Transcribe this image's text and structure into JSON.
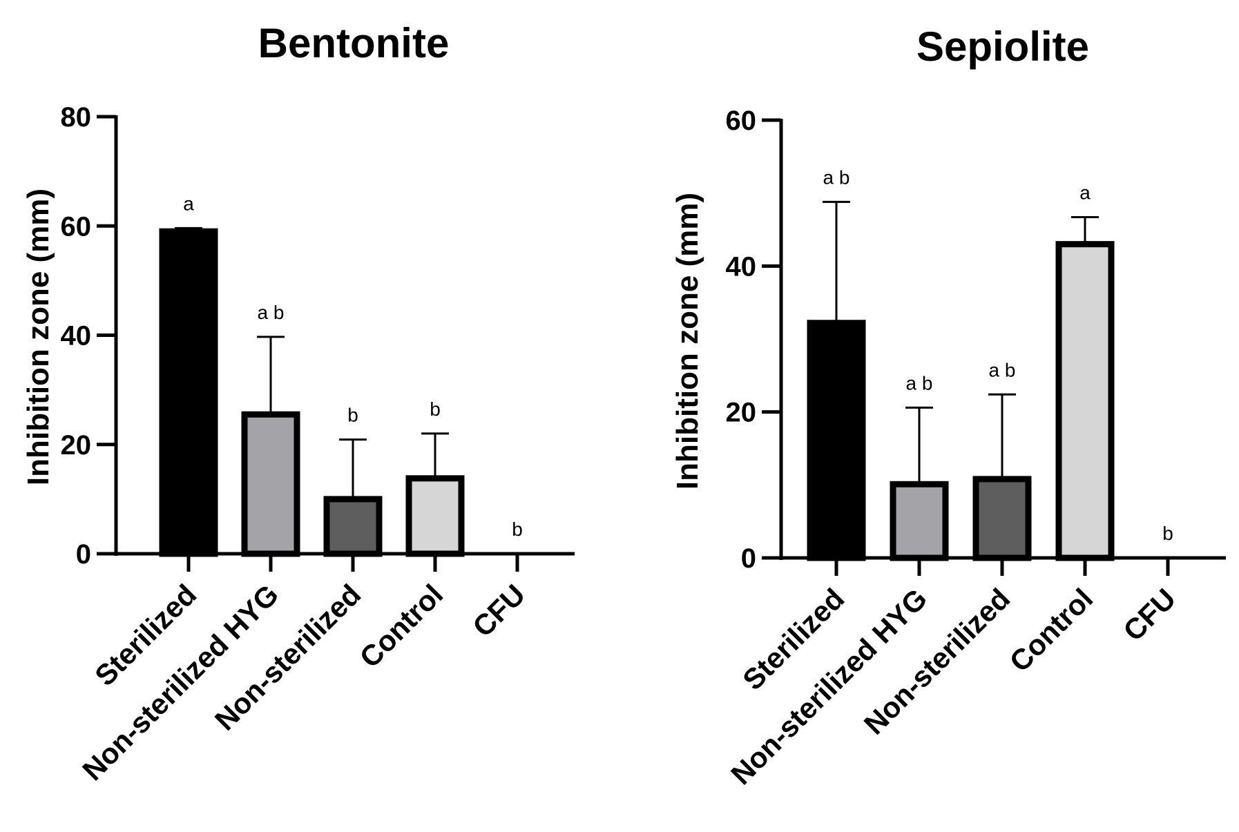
{
  "chart_data": [
    {
      "type": "bar",
      "title": "Bentonite",
      "xlabel": "",
      "ylabel": "Inhibition zone (mm)",
      "ylim": [
        0,
        80
      ],
      "yticks": [
        0,
        20,
        40,
        60,
        80
      ],
      "categories": [
        "Sterilized",
        "Non-sterilized HYG",
        "Non-sterilized",
        "Control",
        "CFU"
      ],
      "values": [
        59,
        25.5,
        10,
        13.8,
        0
      ],
      "errors": [
        0.6,
        14.2,
        10.9,
        8.2,
        0
      ],
      "significance": [
        "a",
        "a b",
        "b",
        "b",
        "b"
      ],
      "colors": [
        "#000000",
        "#a3a3a8",
        "#5e5e5e",
        "#d6d6d6",
        "#ffffff"
      ],
      "grid": false
    },
    {
      "type": "bar",
      "title": "Sepiolite",
      "xlabel": "",
      "ylabel": "Inhibition zone (mm)",
      "ylim": [
        0,
        60
      ],
      "yticks": [
        0,
        20,
        40,
        60
      ],
      "categories": [
        "Sterilized",
        "Non-sterilized HYG",
        "Non-sterilized",
        "Control",
        "CFU"
      ],
      "values": [
        32.2,
        10.1,
        10.8,
        43,
        0
      ],
      "errors": [
        16.6,
        10.5,
        11.6,
        3.7,
        0
      ],
      "significance": [
        "a b",
        "a b",
        "a b",
        "a",
        "b"
      ],
      "colors": [
        "#000000",
        "#a3a3a8",
        "#5e5e5e",
        "#d6d6d6",
        "#ffffff"
      ],
      "grid": false
    }
  ]
}
